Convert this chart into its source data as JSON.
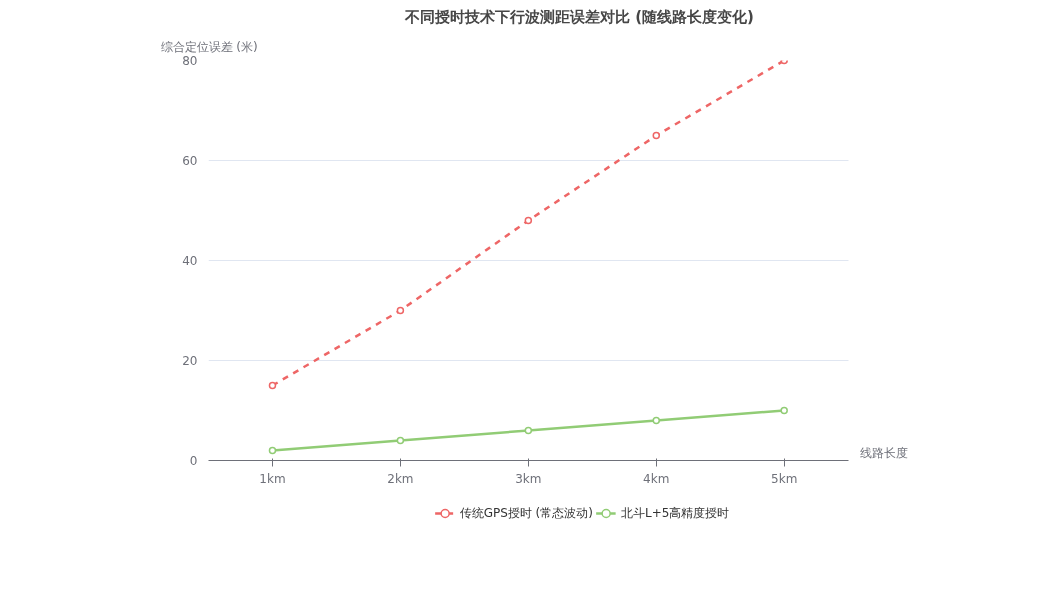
{
  "chart_data": {
    "type": "line",
    "title": "不同授时技术下行波测距误差对比 (随线路长度变化)",
    "xlabel": "线路长度",
    "ylabel": "综合定位误差 (米)",
    "categories": [
      "1km",
      "2km",
      "3km",
      "4km",
      "5km"
    ],
    "series": [
      {
        "name": "传统GPS授时 (常态波动)",
        "color": "#ee6666",
        "values": [
          15,
          30,
          48,
          65,
          80
        ],
        "line_style": "dashed"
      },
      {
        "name": "北斗L+5高精度授时",
        "color": "#91cc75",
        "values": [
          2,
          4,
          6,
          8,
          10
        ],
        "line_style": "solid"
      }
    ],
    "ylim": [
      0,
      80
    ],
    "yticks": [
      0,
      20,
      40,
      60,
      80
    ],
    "grid": "y",
    "legend": "bottom",
    "marker": "circle"
  }
}
